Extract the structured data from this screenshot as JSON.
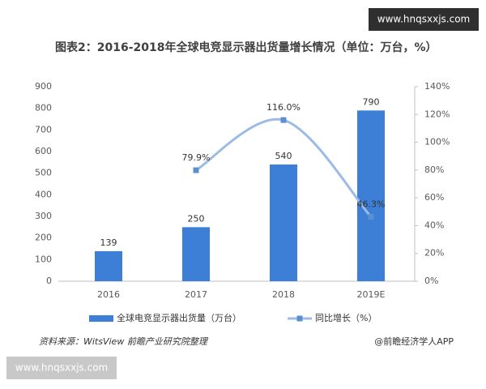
{
  "chart_data": {
    "type": "bar_line",
    "title": "图表2：2016-2018年全球电竞显示器出货量增长情况（单位：万台，%）",
    "categories": [
      "2016",
      "2017",
      "2018",
      "2019E"
    ],
    "series": [
      {
        "name": "全球电竞显示器出货量（万台）",
        "type": "bar",
        "color": "#3d7fd6",
        "values": [
          139,
          250,
          540,
          790
        ]
      },
      {
        "name": "同比增长（%）",
        "type": "line",
        "axis": "y2",
        "color": "#9bbbe6",
        "marker_color": "#5b8fd0",
        "values": [
          null,
          79.9,
          116.0,
          46.3
        ],
        "value_labels": [
          null,
          "79.9%",
          "116.0%",
          "46.3%"
        ]
      }
    ],
    "ylim": [
      0,
      900
    ],
    "yticks": [
      0,
      100,
      200,
      300,
      400,
      500,
      600,
      700,
      800,
      900
    ],
    "y2lim": [
      0,
      140
    ],
    "y2ticks": [
      {
        "value": 0,
        "label": "0%"
      },
      {
        "value": 20,
        "label": "20%"
      },
      {
        "value": 40,
        "label": "40%"
      },
      {
        "value": 60,
        "label": "60%"
      },
      {
        "value": 80,
        "label": "80%"
      },
      {
        "value": 100,
        "label": "100%"
      },
      {
        "value": 120,
        "label": "120%"
      },
      {
        "value": 140,
        "label": "140%"
      }
    ],
    "grid": false,
    "legend": "bottom",
    "source": "资料来源：WitsView 前瞻产业研究院整理",
    "credit": "@前瞻经济学人APP",
    "watermarks": [
      "www.hnqsxxjs.com",
      "www.hnqsxxjs.com"
    ]
  }
}
